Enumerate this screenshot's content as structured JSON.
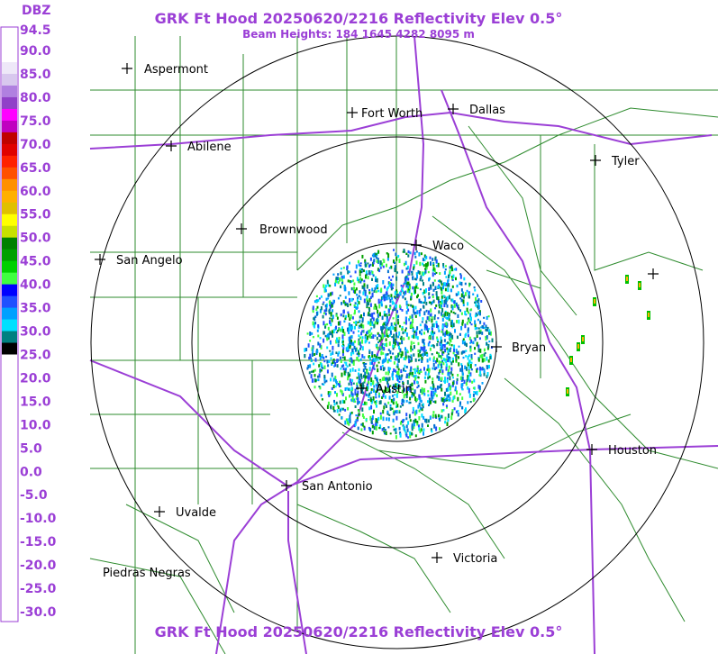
{
  "header": {
    "title": "GRK Ft Hood 20250620/2216 Reflectivity Elev 0.5°",
    "subtitle": "Beam Heights: 184 1645 4282 8095 m"
  },
  "legend": {
    "unit": "DBZ",
    "labels": [
      "94.5",
      "90.0",
      "85.0",
      "80.0",
      "75.0",
      "70.0",
      "65.0",
      "60.0",
      "55.0",
      "50.0",
      "45.0",
      "40.0",
      "35.0",
      "30.0",
      "25.0",
      "20.0",
      "15.0",
      "10.0",
      "5.0",
      "0.0",
      "-5.0",
      "-10.0",
      "-15.0",
      "-20.0",
      "-25.0",
      "-30.0"
    ]
  },
  "cities": [
    {
      "name": "Aspermont"
    },
    {
      "name": "Abilene"
    },
    {
      "name": "Fort Worth"
    },
    {
      "name": "Dallas"
    },
    {
      "name": "Tyler"
    },
    {
      "name": "Brownwood"
    },
    {
      "name": "Waco"
    },
    {
      "name": "San Angelo"
    },
    {
      "name": "Bryan"
    },
    {
      "name": "Austin"
    },
    {
      "name": "Houston"
    },
    {
      "name": "San Antonio"
    },
    {
      "name": "Uvalde"
    },
    {
      "name": "Piedras Negras"
    },
    {
      "name": "Victoria"
    }
  ],
  "footer": {
    "title": "GRK Ft Hood 20250620/2216 Reflectivity Elev 0.5°"
  }
}
